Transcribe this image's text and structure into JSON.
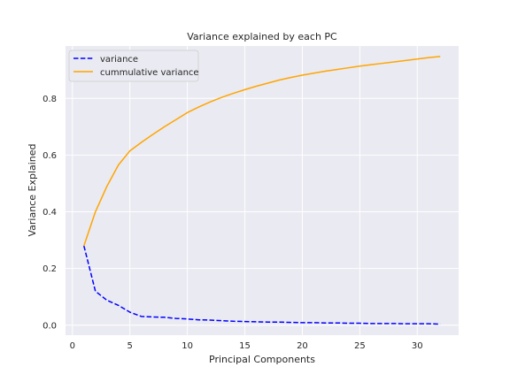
{
  "chart_data": {
    "type": "line",
    "title": "Variance explained by each PC",
    "xlabel": "Principal Components",
    "ylabel": "Variance Explained",
    "xlim": [
      -0.6,
      33.6
    ],
    "ylim": [
      -0.035,
      0.985
    ],
    "xticks": [
      0,
      5,
      10,
      15,
      20,
      25,
      30
    ],
    "yticks": [
      0.0,
      0.2,
      0.4,
      0.6,
      0.8
    ],
    "ytick_labels": [
      "0.0",
      "0.2",
      "0.4",
      "0.6",
      "0.8"
    ],
    "grid": true,
    "legend_position": "top-left",
    "x": [
      1,
      2,
      3,
      4,
      5,
      6,
      7,
      8,
      9,
      10,
      11,
      12,
      13,
      14,
      15,
      16,
      17,
      18,
      19,
      20,
      21,
      22,
      23,
      24,
      25,
      26,
      27,
      28,
      29,
      30,
      31,
      32
    ],
    "series": [
      {
        "name": "variance",
        "color": "#0000ff",
        "style": "dashed",
        "values": [
          0.28,
          0.12,
          0.088,
          0.07,
          0.046,
          0.031,
          0.029,
          0.028,
          0.024,
          0.022,
          0.019,
          0.018,
          0.016,
          0.014,
          0.013,
          0.012,
          0.011,
          0.011,
          0.01,
          0.009,
          0.009,
          0.008,
          0.008,
          0.007,
          0.007,
          0.006,
          0.006,
          0.006,
          0.005,
          0.005,
          0.005,
          0.004
        ]
      },
      {
        "name": "cummulative variance",
        "color": "#ffa500",
        "style": "solid",
        "values": [
          0.28,
          0.4,
          0.49,
          0.565,
          0.615,
          0.645,
          0.673,
          0.7,
          0.725,
          0.75,
          0.77,
          0.788,
          0.804,
          0.818,
          0.831,
          0.843,
          0.854,
          0.865,
          0.874,
          0.882,
          0.889,
          0.896,
          0.902,
          0.908,
          0.914,
          0.919,
          0.924,
          0.929,
          0.934,
          0.939,
          0.944,
          0.948
        ]
      }
    ]
  }
}
